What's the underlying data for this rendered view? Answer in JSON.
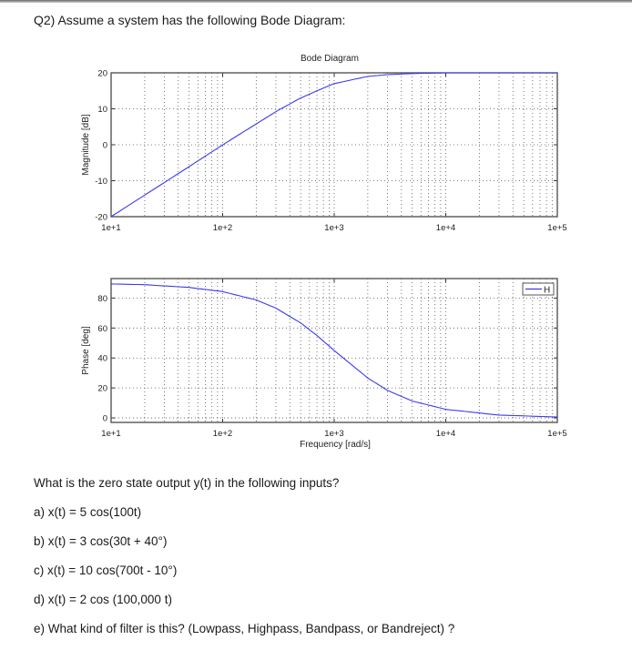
{
  "header": {
    "question_title": "Q2) Assume a system has the following Bode Diagram:"
  },
  "chart_data": [
    {
      "type": "line",
      "title": "Bode Diagram",
      "xlabel": "",
      "ylabel": "Magnitude [dB]",
      "xscale": "log",
      "xlim": [
        10,
        100000
      ],
      "ylim": [
        -20,
        20
      ],
      "x_ticks": [
        "1e+1",
        "1e+2",
        "1e+3",
        "1e+4",
        "1e+5"
      ],
      "y_ticks": [
        -20,
        -10,
        0,
        10,
        20
      ],
      "grid": true,
      "grid_style": "dotted, log minor",
      "series": [
        {
          "name": "H",
          "color": "#3a3aee",
          "x": [
            10,
            20,
            50,
            100,
            200,
            300,
            500,
            700,
            1000,
            2000,
            3000,
            5000,
            10000,
            30000,
            100000
          ],
          "values": [
            -20,
            -14,
            -6.1,
            -0.04,
            5.8,
            9.2,
            13.0,
            15.0,
            17.0,
            19.0,
            19.5,
            19.8,
            20.0,
            20.0,
            20.0
          ]
        }
      ]
    },
    {
      "type": "line",
      "title": "",
      "xlabel": "Frequency [rad/s]",
      "ylabel": "Phase [deg]",
      "xscale": "log",
      "xlim": [
        10,
        100000
      ],
      "ylim": [
        -3,
        93
      ],
      "x_ticks": [
        "1e+1",
        "1e+2",
        "1e+3",
        "1e+4",
        "1e+5"
      ],
      "y_ticks": [
        0,
        20,
        40,
        60,
        80
      ],
      "grid": true,
      "legend": {
        "entries": [
          "H"
        ],
        "position": "top-right"
      },
      "series": [
        {
          "name": "H",
          "color": "#3a3aee",
          "x": [
            10,
            20,
            50,
            100,
            200,
            300,
            500,
            700,
            1000,
            2000,
            3000,
            5000,
            10000,
            30000,
            100000
          ],
          "values": [
            89.4,
            88.9,
            87.1,
            84.3,
            78.7,
            73.3,
            63.4,
            55.0,
            45.0,
            26.6,
            18.4,
            11.3,
            5.7,
            1.9,
            0.6
          ]
        }
      ]
    }
  ],
  "questions": {
    "intro": "What is the zero state output y(t) in the following inputs?",
    "a": "a) x(t) = 5 cos(100t)",
    "b": "b) x(t) = 3 cos(30t + 40°)",
    "c": "c) x(t) = 10 cos(700t -  10°)",
    "d": "d) x(t) = 2 cos (100,000 t)",
    "e": "e) What kind of filter is this? (Lowpass, Highpass, Bandpass, or Bandreject) ?"
  }
}
